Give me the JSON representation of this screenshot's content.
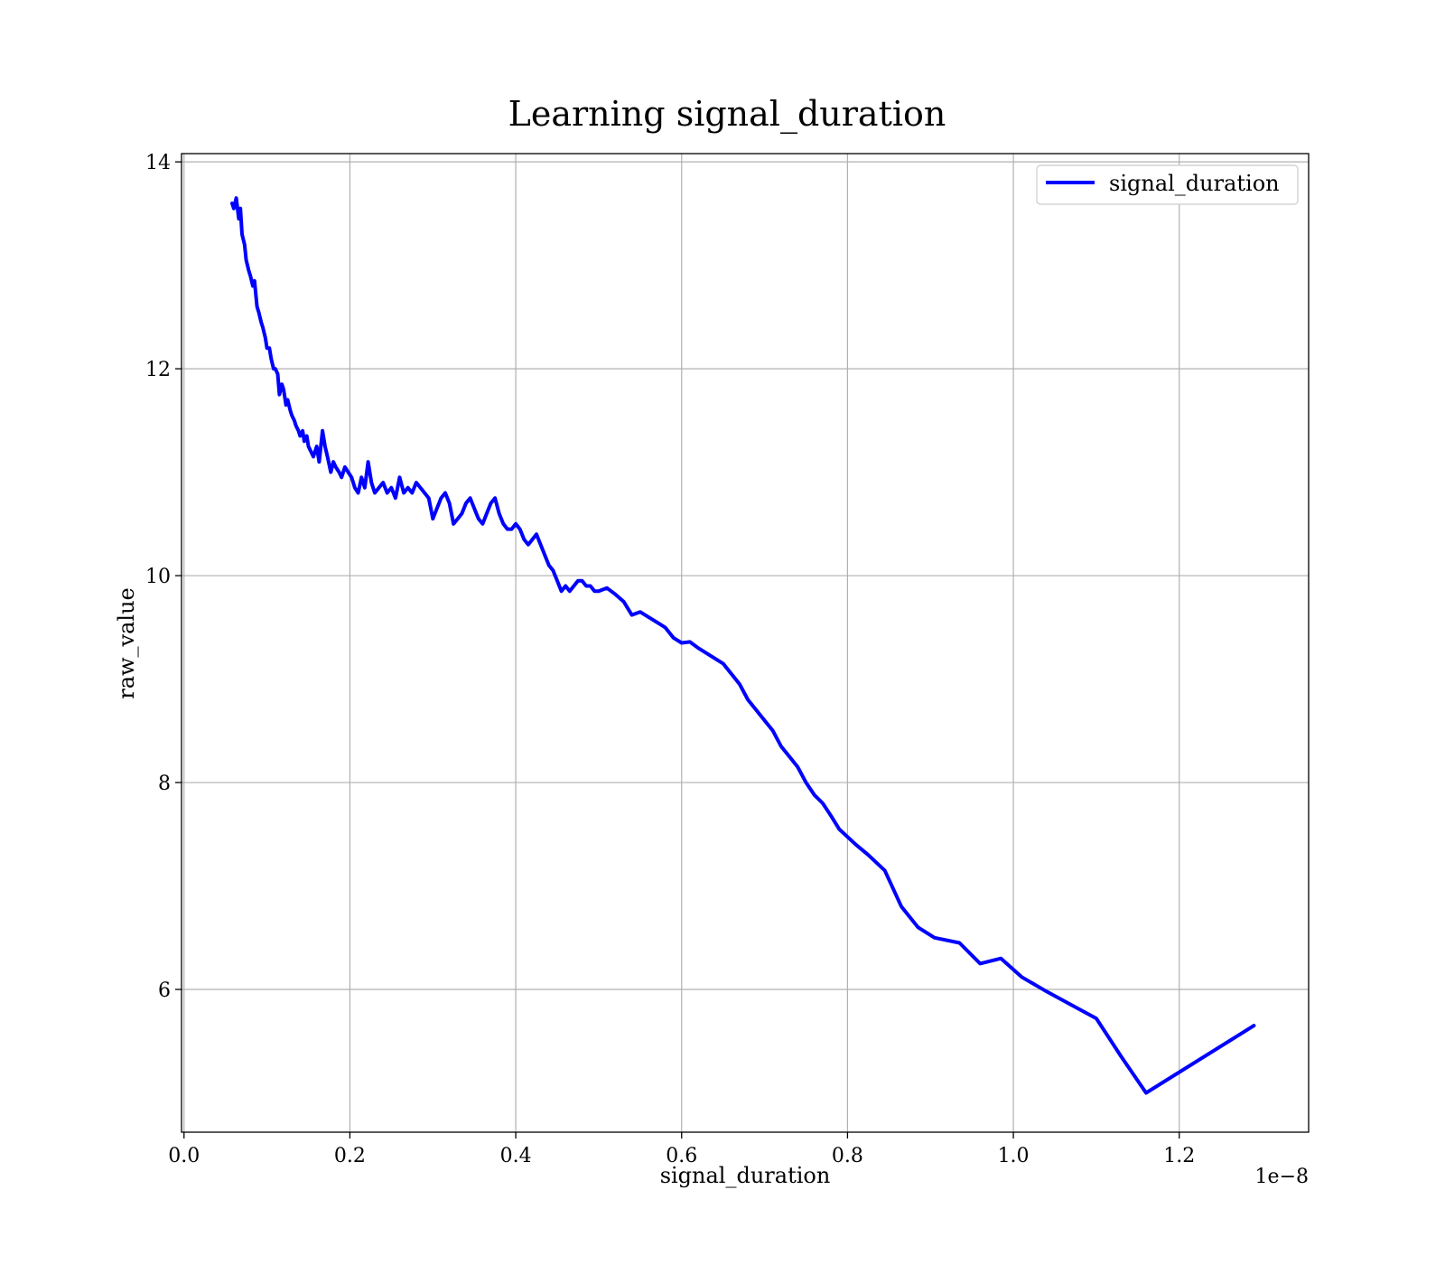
{
  "chart_data": {
    "type": "line",
    "title": "Learning signal_duration",
    "xlabel": "signal_duration",
    "ylabel": "raw_value",
    "x_offset_text": "1e−8",
    "xlim": [
      -0.003,
      1.356
    ],
    "ylim": [
      4.62,
      14.08
    ],
    "x_ticks": [
      0.0,
      0.2,
      0.4,
      0.6,
      0.8,
      1.0,
      1.2
    ],
    "x_tick_labels": [
      "0.0",
      "0.2",
      "0.4",
      "0.6",
      "0.8",
      "1.0",
      "1.2"
    ],
    "y_ticks": [
      6,
      8,
      10,
      12,
      14
    ],
    "y_tick_labels": [
      "6",
      "8",
      "10",
      "12",
      "14"
    ],
    "grid": true,
    "legend_position": "top-right",
    "series": [
      {
        "name": "signal_duration",
        "color": "#0000ff",
        "x": [
          0.058,
          0.06,
          0.063,
          0.066,
          0.068,
          0.07,
          0.073,
          0.075,
          0.078,
          0.08,
          0.083,
          0.085,
          0.088,
          0.09,
          0.093,
          0.095,
          0.098,
          0.1,
          0.103,
          0.105,
          0.108,
          0.11,
          0.113,
          0.115,
          0.118,
          0.12,
          0.123,
          0.125,
          0.128,
          0.13,
          0.133,
          0.135,
          0.138,
          0.14,
          0.143,
          0.145,
          0.148,
          0.15,
          0.153,
          0.156,
          0.16,
          0.163,
          0.167,
          0.17,
          0.173,
          0.177,
          0.18,
          0.183,
          0.187,
          0.19,
          0.194,
          0.198,
          0.202,
          0.206,
          0.21,
          0.214,
          0.218,
          0.222,
          0.226,
          0.23,
          0.235,
          0.24,
          0.245,
          0.25,
          0.255,
          0.26,
          0.265,
          0.27,
          0.275,
          0.28,
          0.285,
          0.29,
          0.295,
          0.3,
          0.305,
          0.31,
          0.315,
          0.32,
          0.325,
          0.33,
          0.335,
          0.34,
          0.345,
          0.35,
          0.355,
          0.36,
          0.365,
          0.37,
          0.375,
          0.38,
          0.385,
          0.39,
          0.395,
          0.4,
          0.405,
          0.41,
          0.415,
          0.42,
          0.425,
          0.43,
          0.435,
          0.44,
          0.445,
          0.45,
          0.455,
          0.46,
          0.465,
          0.47,
          0.475,
          0.48,
          0.485,
          0.49,
          0.495,
          0.5,
          0.51,
          0.52,
          0.53,
          0.54,
          0.55,
          0.56,
          0.57,
          0.58,
          0.59,
          0.6,
          0.61,
          0.62,
          0.63,
          0.64,
          0.65,
          0.66,
          0.67,
          0.68,
          0.69,
          0.7,
          0.71,
          0.72,
          0.73,
          0.74,
          0.75,
          0.76,
          0.77,
          0.78,
          0.79,
          0.81,
          0.825,
          0.845,
          0.865,
          0.885,
          0.905,
          0.935,
          0.96,
          0.985,
          1.01,
          1.04,
          1.07,
          1.1,
          1.13,
          1.16,
          1.29
        ],
        "y": [
          13.6,
          13.55,
          13.65,
          13.45,
          13.55,
          13.3,
          13.2,
          13.05,
          12.95,
          12.9,
          12.8,
          12.85,
          12.6,
          12.55,
          12.45,
          12.4,
          12.3,
          12.2,
          12.2,
          12.1,
          12.0,
          12.0,
          11.95,
          11.75,
          11.85,
          11.8,
          11.65,
          11.7,
          11.6,
          11.55,
          11.5,
          11.45,
          11.4,
          11.35,
          11.4,
          11.3,
          11.35,
          11.25,
          11.2,
          11.15,
          11.25,
          11.1,
          11.4,
          11.25,
          11.15,
          11.0,
          11.1,
          11.05,
          11.0,
          10.95,
          11.05,
          11.0,
          10.95,
          10.85,
          10.8,
          10.95,
          10.85,
          11.1,
          10.9,
          10.8,
          10.85,
          10.9,
          10.8,
          10.85,
          10.75,
          10.95,
          10.8,
          10.85,
          10.8,
          10.9,
          10.85,
          10.8,
          10.75,
          10.55,
          10.65,
          10.75,
          10.8,
          10.7,
          10.5,
          10.55,
          10.6,
          10.7,
          10.75,
          10.65,
          10.55,
          10.5,
          10.6,
          10.7,
          10.75,
          10.6,
          10.5,
          10.45,
          10.45,
          10.5,
          10.45,
          10.35,
          10.3,
          10.35,
          10.4,
          10.3,
          10.2,
          10.1,
          10.05,
          9.95,
          9.85,
          9.9,
          9.85,
          9.9,
          9.95,
          9.95,
          9.9,
          9.9,
          9.85,
          9.85,
          9.88,
          9.82,
          9.75,
          9.62,
          9.65,
          9.6,
          9.55,
          9.5,
          9.4,
          9.35,
          9.36,
          9.3,
          9.25,
          9.2,
          9.15,
          9.05,
          8.95,
          8.8,
          8.7,
          8.6,
          8.5,
          8.35,
          8.25,
          8.15,
          8.0,
          7.88,
          7.8,
          7.68,
          7.55,
          7.4,
          7.3,
          7.15,
          6.8,
          6.6,
          6.5,
          6.45,
          6.25,
          6.3,
          6.12,
          5.98,
          5.85,
          5.72,
          5.35,
          5.0,
          5.65
        ]
      }
    ]
  }
}
